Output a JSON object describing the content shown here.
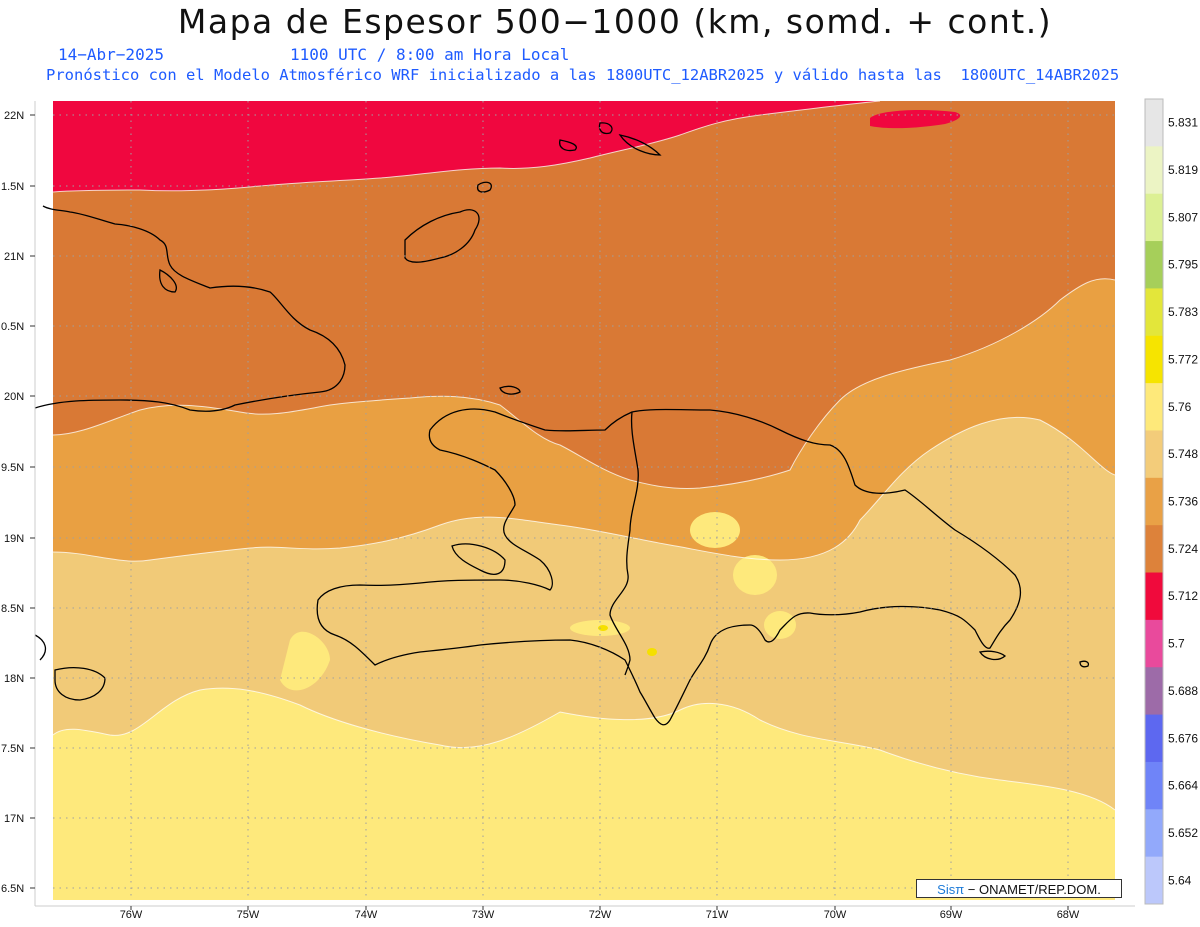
{
  "header": {
    "title": "Mapa de Espesor 500−1000 (km, somd. + cont.)",
    "date": "14−Abr−2025",
    "time": "1100 UTC / 8:00 am Hora Local",
    "init": "Pronóstico con el Modelo Atmosférico WRF inicializado a las 1800UTC_12ABR2025 y válido hasta las  1800UTC_14ABR2025"
  },
  "axes": {
    "lat_labels": [
      "22N",
      "1.5N",
      "21N",
      "0.5N",
      "20N",
      "9.5N",
      "19N",
      "8.5N",
      "18N",
      "7.5N",
      "17N",
      "6.5N"
    ],
    "lon_labels": [
      "76W",
      "75W",
      "74W",
      "73W",
      "72W",
      "71W",
      "70W",
      "69W",
      "68W"
    ]
  },
  "colorbar": {
    "levels": [
      "5.831",
      "5.819",
      "5.807",
      "5.795",
      "5.783",
      "5.772",
      "5.76",
      "5.748",
      "5.736",
      "5.724",
      "5.712",
      "5.7",
      "5.688",
      "5.676",
      "5.664",
      "5.652",
      "5.64"
    ],
    "colors": [
      "#e6e6e6",
      "#ecf4c4",
      "#dcf094",
      "#a6cf5a",
      "#e3e63a",
      "#f6e400",
      "#fee97a",
      "#f3cc7a",
      "#e9a146",
      "#dd823a",
      "#f00a3c",
      "#e94a9c",
      "#9d6ba8",
      "#5d68f0",
      "#6f84f8",
      "#92a9fb",
      "#bcc8fb"
    ]
  },
  "map_colors": {
    "red": "#f0073f",
    "dark_orange": "#d97935",
    "orange": "#e9a042",
    "tan": "#f1ca78",
    "light_yellow": "#fee97c",
    "yellow": "#f5e000"
  },
  "credit": {
    "sis": "Sisπ",
    "rest": " − ONAMET/REP.DOM."
  }
}
